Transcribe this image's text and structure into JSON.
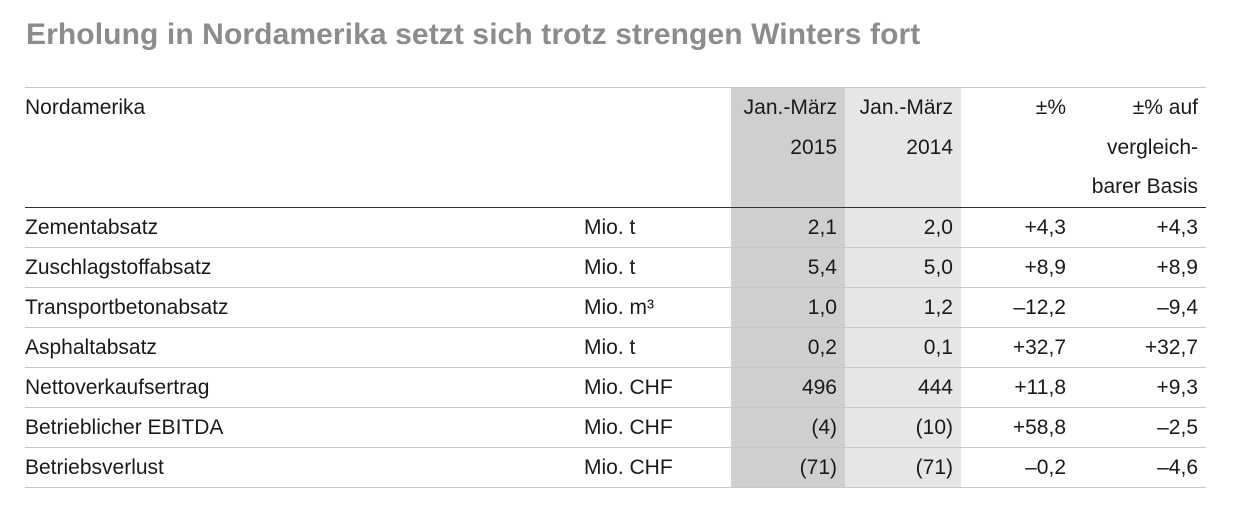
{
  "title": "Erholung in Nordamerika setzt sich trotz strengen Winters fort",
  "table": {
    "header": {
      "label": "Nordamerika",
      "unit": "",
      "col_2015": [
        "Jan.-März",
        "2015"
      ],
      "col_2014": [
        "Jan.-März",
        "2014"
      ],
      "col_pct": [
        "±%"
      ],
      "col_cmp": [
        "±% auf",
        "vergleich-",
        "barer Basis"
      ]
    },
    "rows": [
      {
        "label": "Zementabsatz",
        "unit": "Mio. t",
        "v2015": "2,1",
        "v2014": "2,0",
        "pct": "+4,3",
        "cmp": "+4,3"
      },
      {
        "label": "Zuschlagstoffabsatz",
        "unit": "Mio. t",
        "v2015": "5,4",
        "v2014": "5,0",
        "pct": "+8,9",
        "cmp": "+8,9"
      },
      {
        "label": "Transportbetonabsatz",
        "unit": "Mio. m³",
        "v2015": "1,0",
        "v2014": "1,2",
        "pct": "–12,2",
        "cmp": "–9,4"
      },
      {
        "label": "Asphaltabsatz",
        "unit": "Mio. t",
        "v2015": "0,2",
        "v2014": "0,1",
        "pct": "+32,7",
        "cmp": "+32,7"
      },
      {
        "label": "Nettoverkaufsertrag",
        "unit": "Mio. CHF",
        "v2015": "496",
        "v2014": "444",
        "pct": "+11,8",
        "cmp": "+9,3"
      },
      {
        "label": "Betrieblicher EBITDA",
        "unit": "Mio. CHF",
        "v2015": "(4)",
        "v2014": "(10)",
        "pct": "+58,8",
        "cmp": "–2,5"
      },
      {
        "label": "Betriebsverlust",
        "unit": "Mio. CHF",
        "v2015": "(71)",
        "v2014": "(71)",
        "pct": "–0,2",
        "cmp": "–4,6"
      }
    ],
    "colors": {
      "title": "#8c8c8c",
      "shade_2015": "#cfcfcf",
      "shade_2014": "#e6e6e6"
    }
  }
}
